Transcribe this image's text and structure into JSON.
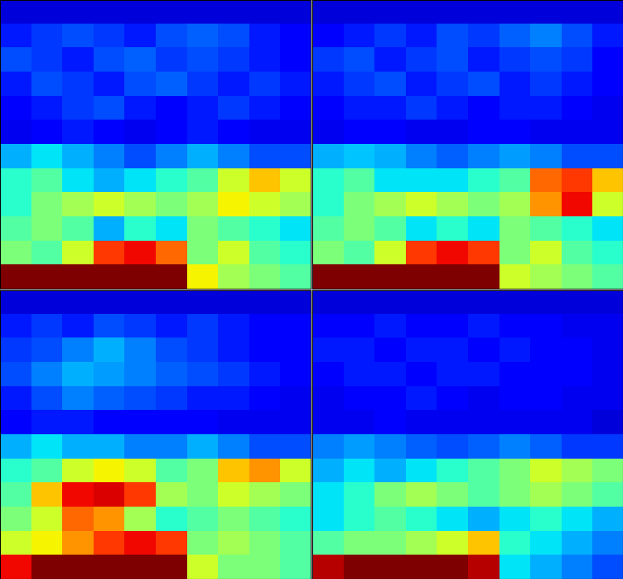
{
  "chart_data": [
    {
      "type": "heatmap",
      "tick_labels": false,
      "value_range": [
        0,
        1
      ],
      "cells": [
        [
          0.08,
          0.08,
          0.08,
          0.08,
          0.08,
          0.08,
          0.08,
          0.08,
          0.08,
          0.08
        ],
        [
          0.15,
          0.18,
          0.2,
          0.18,
          0.15,
          0.2,
          0.22,
          0.2,
          0.15,
          0.12
        ],
        [
          0.2,
          0.18,
          0.15,
          0.2,
          0.22,
          0.18,
          0.2,
          0.18,
          0.15,
          0.12
        ],
        [
          0.15,
          0.2,
          0.18,
          0.15,
          0.2,
          0.22,
          0.18,
          0.15,
          0.18,
          0.15
        ],
        [
          0.12,
          0.15,
          0.18,
          0.2,
          0.15,
          0.12,
          0.15,
          0.18,
          0.15,
          0.12
        ],
        [
          0.1,
          0.12,
          0.15,
          0.12,
          0.1,
          0.12,
          0.15,
          0.12,
          0.1,
          0.1
        ],
        [
          0.3,
          0.35,
          0.3,
          0.25,
          0.2,
          0.25,
          0.3,
          0.25,
          0.2,
          0.2
        ],
        [
          0.4,
          0.45,
          0.35,
          0.3,
          0.35,
          0.4,
          0.45,
          0.6,
          0.7,
          0.6
        ],
        [
          0.4,
          0.5,
          0.55,
          0.6,
          0.55,
          0.5,
          0.55,
          0.65,
          0.6,
          0.55
        ],
        [
          0.45,
          0.5,
          0.45,
          0.3,
          0.4,
          0.35,
          0.5,
          0.45,
          0.4,
          0.35
        ],
        [
          0.5,
          0.45,
          0.6,
          0.85,
          0.9,
          0.8,
          0.5,
          0.6,
          0.45,
          0.4
        ],
        [
          1,
          1,
          1,
          1,
          1,
          1,
          0.65,
          0.55,
          0.5,
          0.45
        ]
      ]
    },
    {
      "type": "heatmap",
      "tick_labels": false,
      "value_range": [
        0,
        1
      ],
      "cells": [
        [
          0.08,
          0.08,
          0.08,
          0.08,
          0.08,
          0.08,
          0.08,
          0.08,
          0.08,
          0.08
        ],
        [
          0.12,
          0.15,
          0.18,
          0.15,
          0.2,
          0.18,
          0.22,
          0.25,
          0.2,
          0.15
        ],
        [
          0.18,
          0.2,
          0.15,
          0.18,
          0.2,
          0.15,
          0.18,
          0.2,
          0.18,
          0.12
        ],
        [
          0.15,
          0.18,
          0.2,
          0.15,
          0.18,
          0.2,
          0.15,
          0.18,
          0.15,
          0.12
        ],
        [
          0.12,
          0.15,
          0.15,
          0.18,
          0.15,
          0.12,
          0.15,
          0.15,
          0.12,
          0.1
        ],
        [
          0.1,
          0.12,
          0.12,
          0.1,
          0.1,
          0.12,
          0.12,
          0.1,
          0.1,
          0.1
        ],
        [
          0.3,
          0.32,
          0.3,
          0.25,
          0.22,
          0.25,
          0.28,
          0.25,
          0.2,
          0.2
        ],
        [
          0.4,
          0.45,
          0.35,
          0.35,
          0.35,
          0.4,
          0.45,
          0.8,
          0.85,
          0.7
        ],
        [
          0.4,
          0.5,
          0.55,
          0.6,
          0.55,
          0.5,
          0.55,
          0.75,
          0.9,
          0.6
        ],
        [
          0.45,
          0.5,
          0.45,
          0.35,
          0.4,
          0.35,
          0.5,
          0.45,
          0.4,
          0.35
        ],
        [
          0.5,
          0.45,
          0.6,
          0.85,
          0.9,
          0.85,
          0.5,
          0.6,
          0.45,
          0.4
        ],
        [
          1,
          1,
          1,
          1,
          1,
          1,
          0.6,
          0.55,
          0.5,
          0.45
        ]
      ]
    },
    {
      "type": "heatmap",
      "tick_labels": false,
      "value_range": [
        0,
        1
      ],
      "cells": [
        [
          0.08,
          0.08,
          0.08,
          0.08,
          0.08,
          0.08,
          0.08,
          0.08,
          0.08,
          0.08
        ],
        [
          0.15,
          0.18,
          0.15,
          0.2,
          0.18,
          0.15,
          0.18,
          0.15,
          0.12,
          0.12
        ],
        [
          0.18,
          0.2,
          0.25,
          0.3,
          0.25,
          0.2,
          0.18,
          0.15,
          0.12,
          0.12
        ],
        [
          0.2,
          0.25,
          0.3,
          0.28,
          0.25,
          0.22,
          0.2,
          0.18,
          0.15,
          0.12
        ],
        [
          0.15,
          0.2,
          0.25,
          0.22,
          0.2,
          0.18,
          0.15,
          0.15,
          0.12,
          0.1
        ],
        [
          0.12,
          0.15,
          0.15,
          0.12,
          0.12,
          0.12,
          0.12,
          0.1,
          0.1,
          0.1
        ],
        [
          0.3,
          0.35,
          0.3,
          0.3,
          0.25,
          0.25,
          0.3,
          0.25,
          0.2,
          0.2
        ],
        [
          0.4,
          0.45,
          0.6,
          0.65,
          0.6,
          0.45,
          0.5,
          0.7,
          0.75,
          0.6
        ],
        [
          0.45,
          0.7,
          0.9,
          0.92,
          0.85,
          0.55,
          0.5,
          0.6,
          0.55,
          0.5
        ],
        [
          0.5,
          0.6,
          0.8,
          0.75,
          0.55,
          0.4,
          0.45,
          0.5,
          0.45,
          0.4
        ],
        [
          0.6,
          0.65,
          0.75,
          0.85,
          0.9,
          0.85,
          0.5,
          0.55,
          0.5,
          0.45
        ],
        [
          0.9,
          1,
          1,
          1,
          1,
          1,
          0.6,
          0.5,
          0.5,
          0.45
        ]
      ]
    },
    {
      "type": "heatmap",
      "tick_labels": false,
      "value_range": [
        0,
        1
      ],
      "cells": [
        [
          0.08,
          0.08,
          0.08,
          0.08,
          0.08,
          0.08,
          0.08,
          0.08,
          0.08,
          0.08
        ],
        [
          0.12,
          0.12,
          0.15,
          0.12,
          0.12,
          0.15,
          0.12,
          0.12,
          0.1,
          0.1
        ],
        [
          0.15,
          0.15,
          0.12,
          0.15,
          0.15,
          0.12,
          0.15,
          0.12,
          0.12,
          0.1
        ],
        [
          0.12,
          0.15,
          0.15,
          0.12,
          0.15,
          0.15,
          0.12,
          0.12,
          0.12,
          0.1
        ],
        [
          0.1,
          0.12,
          0.12,
          0.15,
          0.12,
          0.1,
          0.12,
          0.12,
          0.1,
          0.1
        ],
        [
          0.1,
          0.1,
          0.12,
          0.1,
          0.1,
          0.1,
          0.1,
          0.1,
          0.1,
          0.08
        ],
        [
          0.25,
          0.28,
          0.25,
          0.22,
          0.2,
          0.22,
          0.25,
          0.22,
          0.18,
          0.18
        ],
        [
          0.3,
          0.35,
          0.3,
          0.35,
          0.4,
          0.45,
          0.5,
          0.6,
          0.55,
          0.5
        ],
        [
          0.35,
          0.4,
          0.5,
          0.55,
          0.5,
          0.45,
          0.5,
          0.55,
          0.5,
          0.45
        ],
        [
          0.35,
          0.4,
          0.45,
          0.4,
          0.35,
          0.3,
          0.35,
          0.4,
          0.35,
          0.3
        ],
        [
          0.45,
          0.5,
          0.5,
          0.55,
          0.6,
          0.7,
          0.4,
          0.35,
          0.3,
          0.25
        ],
        [
          0.95,
          1,
          1,
          1,
          1,
          0.95,
          0.35,
          0.3,
          0.25,
          0.2
        ]
      ]
    }
  ]
}
